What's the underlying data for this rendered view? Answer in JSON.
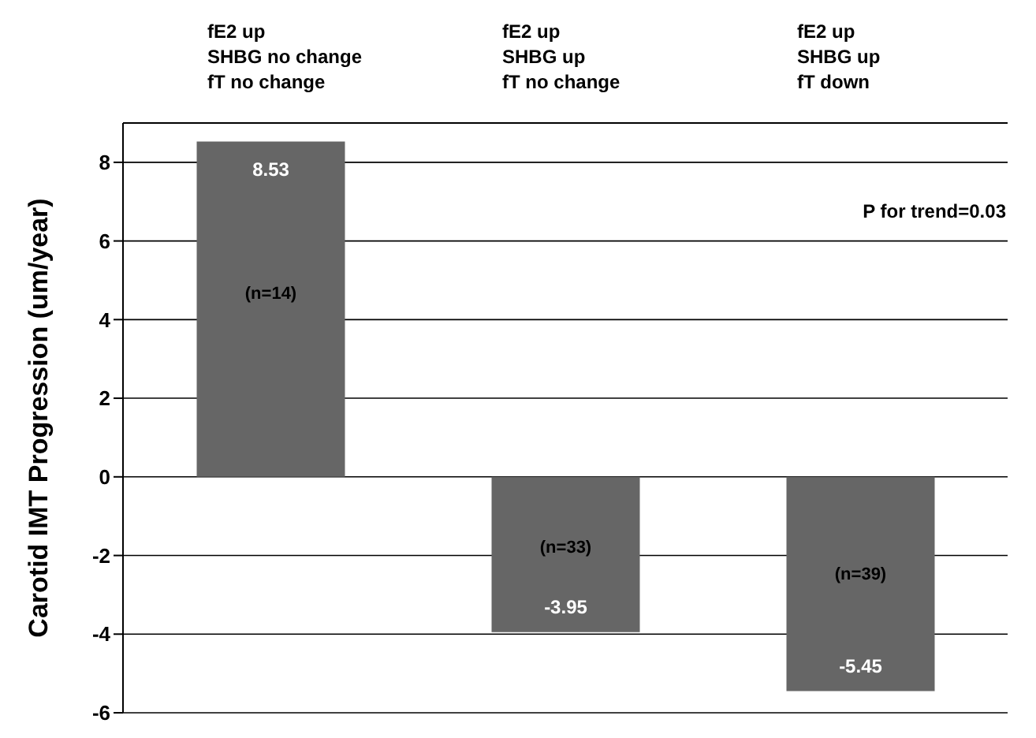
{
  "chart_data": {
    "type": "bar",
    "ylabel": "Carotid IMT Progression (um/year)",
    "categories": [
      "fE2 up\nSHBG no change\nfT no change",
      "fE2 up\nSHBG up\nfT no change",
      "fE2 up\nSHBG up\nfT down"
    ],
    "values": [
      8.53,
      -3.95,
      -5.45
    ],
    "color": "#666666",
    "data_labels": true,
    "ylim": [
      -6,
      9
    ],
    "yticks": [
      -6,
      -4,
      -2,
      0,
      2,
      4,
      6,
      8
    ],
    "grid": "y",
    "annotations": [
      "P for trend=0.03",
      "(n=14)",
      "(n=33)",
      "(n=39)"
    ]
  }
}
